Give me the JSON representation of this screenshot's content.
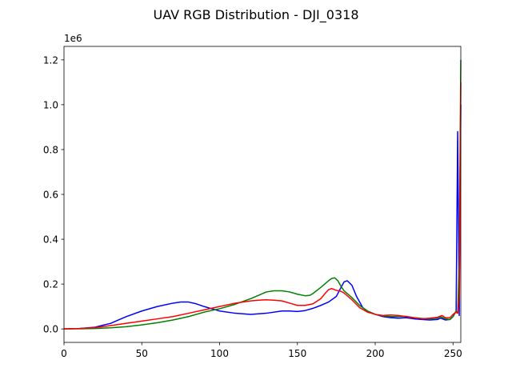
{
  "chart_data": {
    "type": "line",
    "title": "UAV RGB Distribution - DJI_0318",
    "xlabel": "",
    "ylabel": "",
    "xlim": [
      0,
      255
    ],
    "ylim": [
      -60000,
      1260000
    ],
    "y_offset_label": "1e6",
    "x_ticks": [
      0,
      50,
      100,
      150,
      200,
      250
    ],
    "x_tick_labels": [
      "0",
      "50",
      "100",
      "150",
      "200",
      "250"
    ],
    "y_ticks": [
      0,
      200000,
      400000,
      600000,
      800000,
      1000000,
      1200000
    ],
    "y_tick_labels": [
      "0.0",
      "0.2",
      "0.4",
      "0.6",
      "0.8",
      "1.0",
      "1.2"
    ],
    "grid": false,
    "legend": "none",
    "series": [
      {
        "color": "#0000ff",
        "x": [
          0,
          10,
          20,
          30,
          35,
          40,
          50,
          60,
          70,
          75,
          80,
          85,
          90,
          95,
          100,
          110,
          120,
          130,
          140,
          145,
          150,
          155,
          160,
          165,
          170,
          175,
          178,
          180,
          182,
          185,
          188,
          192,
          195,
          200,
          205,
          210,
          215,
          220,
          225,
          230,
          235,
          240,
          242,
          245,
          248,
          250,
          252,
          253,
          254,
          255
        ],
        "y": [
          0,
          2000,
          8000,
          25000,
          40000,
          55000,
          80000,
          100000,
          115000,
          120000,
          120000,
          112000,
          100000,
          90000,
          80000,
          70000,
          65000,
          70000,
          80000,
          80000,
          78000,
          82000,
          92000,
          105000,
          120000,
          145000,
          185000,
          210000,
          215000,
          195000,
          145000,
          95000,
          80000,
          65000,
          55000,
          50000,
          48000,
          50000,
          45000,
          42000,
          40000,
          42000,
          48000,
          40000,
          42000,
          55000,
          80000,
          880000,
          60000,
          1000000
        ]
      },
      {
        "color": "#008000",
        "x": [
          0,
          10,
          20,
          30,
          40,
          50,
          60,
          70,
          80,
          90,
          100,
          110,
          120,
          125,
          130,
          135,
          140,
          145,
          150,
          155,
          158,
          160,
          165,
          170,
          172,
          174,
          176,
          178,
          180,
          185,
          190,
          195,
          200,
          205,
          210,
          215,
          220,
          225,
          230,
          235,
          240,
          242,
          245,
          248,
          250,
          252,
          253,
          254,
          255
        ],
        "y": [
          0,
          500,
          2000,
          5000,
          10000,
          18000,
          28000,
          40000,
          55000,
          75000,
          90000,
          110000,
          135000,
          150000,
          165000,
          170000,
          170000,
          165000,
          155000,
          148000,
          150000,
          158000,
          185000,
          215000,
          225000,
          228000,
          215000,
          190000,
          170000,
          140000,
          105000,
          80000,
          65000,
          58000,
          55000,
          55000,
          56000,
          50000,
          47000,
          45000,
          48000,
          55000,
          45000,
          42000,
          55000,
          80000,
          70000,
          300000,
          1200000
        ]
      },
      {
        "color": "#ff0000",
        "x": [
          0,
          10,
          20,
          30,
          40,
          50,
          60,
          70,
          80,
          90,
          100,
          110,
          120,
          125,
          130,
          135,
          140,
          145,
          150,
          155,
          160,
          165,
          168,
          170,
          172,
          175,
          178,
          180,
          185,
          190,
          195,
          200,
          205,
          210,
          215,
          220,
          225,
          230,
          235,
          240,
          243,
          245,
          248,
          250,
          252,
          253,
          254,
          255
        ],
        "y": [
          0,
          2000,
          6000,
          15000,
          25000,
          35000,
          45000,
          55000,
          70000,
          85000,
          100000,
          115000,
          125000,
          128000,
          130000,
          128000,
          125000,
          115000,
          105000,
          105000,
          112000,
          135000,
          160000,
          175000,
          180000,
          172000,
          168000,
          160000,
          130000,
          95000,
          75000,
          65000,
          60000,
          62000,
          60000,
          55000,
          50000,
          45000,
          48000,
          52000,
          60000,
          50000,
          50000,
          65000,
          75000,
          70000,
          150000,
          1100000
        ]
      }
    ]
  }
}
